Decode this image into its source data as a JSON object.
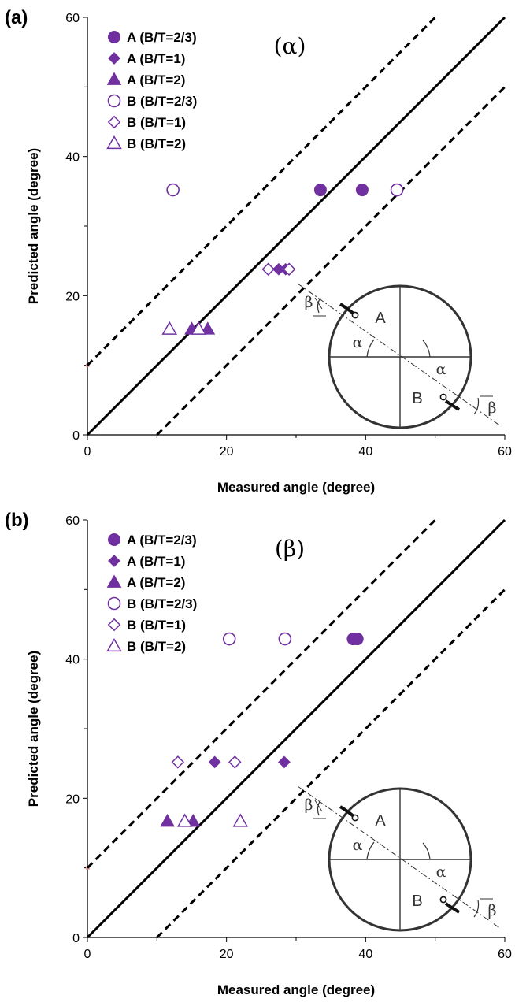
{
  "chart_data": [
    {
      "panel_label": "(a)",
      "type": "scatter",
      "title": "(α)",
      "xlabel": "Measured angle (degree)",
      "ylabel": "Predicted angle (degree)",
      "xlim": [
        0,
        60
      ],
      "ylim": [
        0,
        60
      ],
      "xticks": [
        "0",
        "20",
        "40",
        "60"
      ],
      "yticks": [
        "0",
        "20",
        "40",
        "60"
      ],
      "grid": false,
      "legend_position": "top-left",
      "reference_lines": [
        {
          "style": "solid",
          "offset": 0
        },
        {
          "style": "dashed",
          "offset": 10
        },
        {
          "style": "dashed",
          "offset": -10
        }
      ],
      "series": [
        {
          "name": "A (B/T=2/3)",
          "marker": "circle",
          "filled": true,
          "points": [
            [
              33.5,
              35.2
            ],
            [
              39.5,
              35.2
            ]
          ]
        },
        {
          "name": "A (B/T=1)",
          "marker": "diamond",
          "filled": true,
          "points": [
            [
              27.5,
              23.8
            ],
            [
              28.5,
              23.8
            ]
          ]
        },
        {
          "name": "A (B/T=2)",
          "marker": "triangle",
          "filled": true,
          "points": [
            [
              15.0,
              15.2
            ],
            [
              17.3,
              15.2
            ]
          ]
        },
        {
          "name": "B (B/T=2/3)",
          "marker": "circle",
          "filled": false,
          "points": [
            [
              12.3,
              35.2
            ],
            [
              44.5,
              35.2
            ]
          ]
        },
        {
          "name": "B (B/T=1)",
          "marker": "diamond",
          "filled": false,
          "points": [
            [
              26.0,
              23.8
            ],
            [
              29.0,
              23.8
            ]
          ]
        },
        {
          "name": "B (B/T=2)",
          "marker": "triangle",
          "filled": false,
          "points": [
            [
              11.8,
              15.2
            ],
            [
              16.0,
              15.2
            ]
          ]
        }
      ],
      "inset": {
        "labels": [
          "A",
          "B"
        ],
        "angles": [
          "α",
          "α",
          "β",
          "β"
        ]
      }
    },
    {
      "panel_label": "(b)",
      "type": "scatter",
      "title": "(β)",
      "xlabel": "Measured angle (degree)",
      "ylabel": "Predicted angle (degree)",
      "xlim": [
        0,
        60
      ],
      "ylim": [
        0,
        60
      ],
      "xticks": [
        "0",
        "20",
        "40",
        "60"
      ],
      "yticks": [
        "0",
        "20",
        "40",
        "60"
      ],
      "grid": false,
      "legend_position": "top-left",
      "reference_lines": [
        {
          "style": "solid",
          "offset": 0
        },
        {
          "style": "dashed",
          "offset": 10
        },
        {
          "style": "dashed",
          "offset": -10
        }
      ],
      "series": [
        {
          "name": "A (B/T=2/3)",
          "marker": "circle",
          "filled": true,
          "points": [
            [
              38.2,
              42.9
            ],
            [
              38.8,
              42.9
            ]
          ]
        },
        {
          "name": "A (B/T=1)",
          "marker": "diamond",
          "filled": true,
          "points": [
            [
              18.3,
              25.2
            ],
            [
              28.3,
              25.2
            ]
          ]
        },
        {
          "name": "A (B/T=2)",
          "marker": "triangle",
          "filled": true,
          "points": [
            [
              11.5,
              16.7
            ],
            [
              15.2,
              16.7
            ]
          ]
        },
        {
          "name": "B (B/T=2/3)",
          "marker": "circle",
          "filled": false,
          "points": [
            [
              20.4,
              42.9
            ],
            [
              28.4,
              42.9
            ]
          ]
        },
        {
          "name": "B (B/T=1)",
          "marker": "diamond",
          "filled": false,
          "points": [
            [
              13.0,
              25.2
            ],
            [
              21.2,
              25.2
            ]
          ]
        },
        {
          "name": "B (B/T=2)",
          "marker": "triangle",
          "filled": false,
          "points": [
            [
              14.0,
              16.7
            ],
            [
              22.0,
              16.7
            ]
          ]
        }
      ],
      "inset": {
        "labels": [
          "A",
          "B"
        ],
        "angles": [
          "α",
          "α",
          "β",
          "β"
        ]
      }
    }
  ],
  "colors": {
    "marker": "#7030a0",
    "axis": "#000000",
    "inset": "#333333",
    "stray_mark": "#e8a0a0"
  }
}
